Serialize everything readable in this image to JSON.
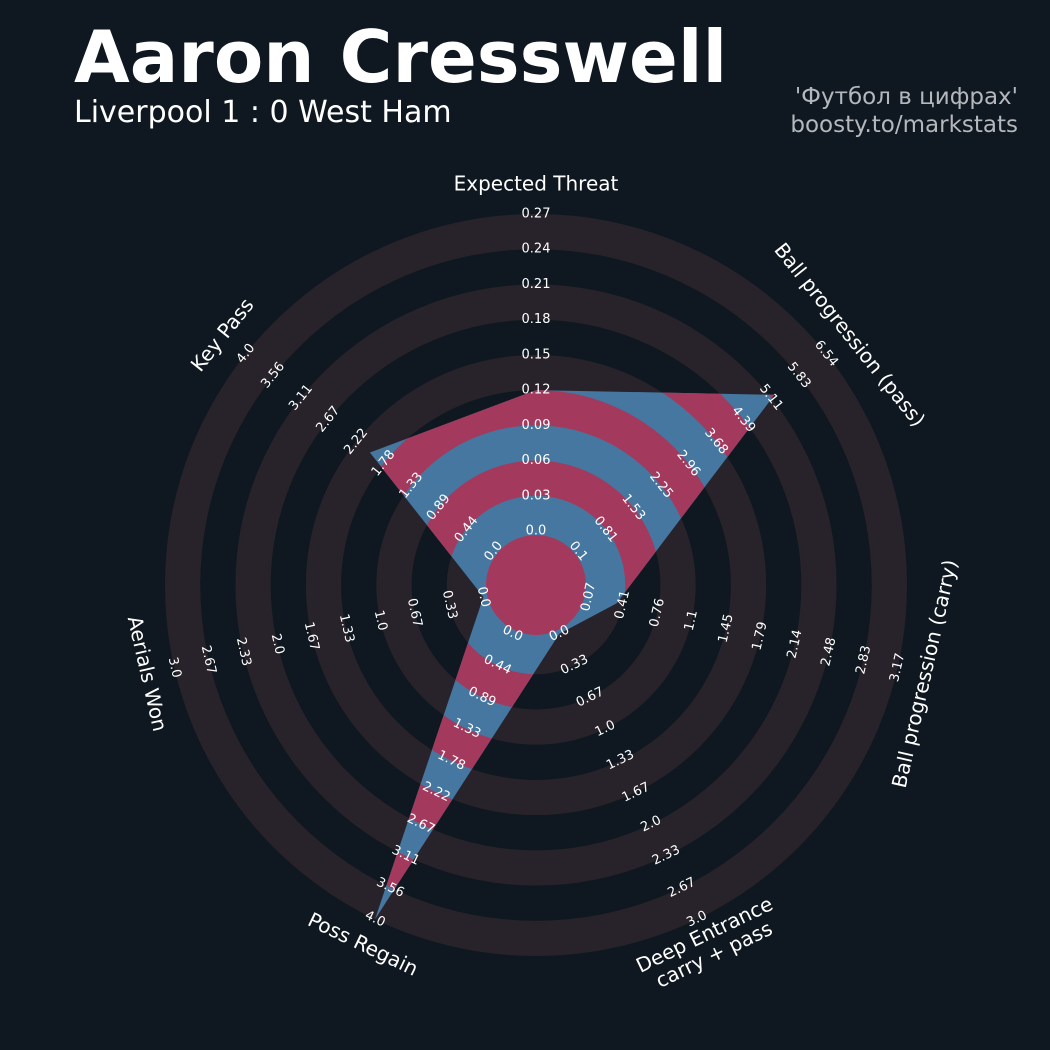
{
  "chart_data": {
    "type": "radar",
    "title": "Aaron Cresswell",
    "subtitle": "Liverpool 1 : 0 West Ham",
    "credits": [
      "'Футбол в цифрах'",
      "boosty.to/markstats"
    ],
    "categories": [
      "Expected Threat",
      "Ball progression (pass)",
      "Ball progression (carry)",
      "Deep Entrance\ncarry + pass",
      "Poss Regain",
      "Aerials Won",
      "Key Pass"
    ],
    "values": [
      0.12,
      5.2,
      0.35,
      0.0,
      4.0,
      0.0,
      2.0
    ],
    "lims": [
      [
        0,
        0.27
      ],
      [
        0.1,
        6.54
      ],
      [
        0.07,
        3.17
      ],
      [
        0,
        3
      ],
      [
        0,
        4
      ],
      [
        0,
        3
      ],
      [
        0,
        4
      ]
    ],
    "ticks": [
      [
        {
          "value": 0,
          "label": "0.0"
        },
        0.03,
        0.06,
        0.09,
        0.12,
        0.15,
        0.18,
        0.21,
        0.24,
        0.27
      ],
      [
        0.1,
        0.81,
        1.53,
        2.25,
        2.96,
        3.68,
        4.39,
        5.11,
        5.83,
        6.54
      ],
      [
        0.07,
        0.41,
        0.76,
        1.1,
        1.45,
        1.79,
        2.14,
        2.48,
        2.83,
        3.17
      ],
      [
        {
          "value": 0,
          "label": "0.0"
        },
        0.33,
        0.67,
        {
          "value": 1,
          "label": "1.0"
        },
        1.33,
        1.67,
        {
          "value": 2,
          "label": "2.0"
        },
        2.33,
        2.67,
        {
          "value": 3,
          "label": "3.0"
        }
      ],
      [
        {
          "value": 0,
          "label": "0.0"
        },
        0.44,
        0.89,
        1.33,
        1.78,
        2.22,
        2.67,
        3.11,
        3.56,
        {
          "value": 4,
          "label": "4.0"
        }
      ],
      [
        {
          "value": 0,
          "label": "0.0"
        },
        0.33,
        0.67,
        {
          "value": 1,
          "label": "1.0"
        },
        1.33,
        1.67,
        {
          "value": 2,
          "label": "2.0"
        },
        2.33,
        2.67,
        {
          "value": 3,
          "label": "3.0"
        }
      ],
      [
        {
          "value": 0,
          "label": "0.0"
        },
        0.44,
        0.89,
        1.33,
        1.78,
        2.22,
        2.67,
        3.11,
        3.56,
        {
          "value": 4,
          "label": "4.0"
        }
      ]
    ],
    "color": "#4577a0",
    "ring_inner_color": "#a33a5e",
    "ring_color": "#28232a"
  }
}
